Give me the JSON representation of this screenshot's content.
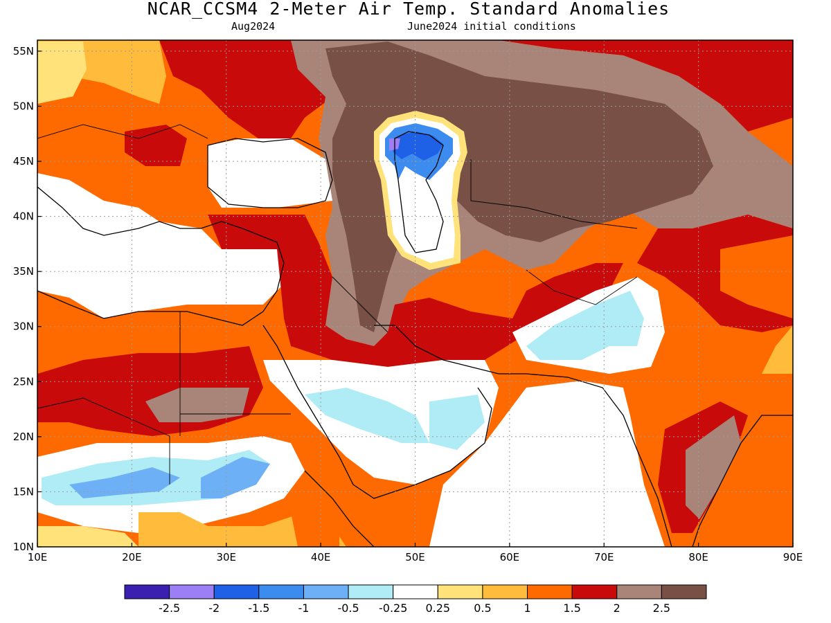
{
  "title": "NCAR_CCSM4 2-Meter Air Temp. Standard Anomalies",
  "subtitle_left": "Aug2024",
  "subtitle_right": "June2024 initial conditions",
  "map": {
    "lon_range": [
      10,
      90
    ],
    "lat_range": [
      10,
      56
    ],
    "x_ticks": [
      {
        "value": 10,
        "label": "10E"
      },
      {
        "value": 20,
        "label": "20E"
      },
      {
        "value": 30,
        "label": "30E"
      },
      {
        "value": 40,
        "label": "40E"
      },
      {
        "value": 50,
        "label": "50E"
      },
      {
        "value": 60,
        "label": "60E"
      },
      {
        "value": 70,
        "label": "70E"
      },
      {
        "value": 80,
        "label": "80E"
      },
      {
        "value": 90,
        "label": "90E"
      }
    ],
    "y_ticks": [
      {
        "value": 10,
        "label": "10N"
      },
      {
        "value": 15,
        "label": "15N"
      },
      {
        "value": 20,
        "label": "20N"
      },
      {
        "value": 25,
        "label": "25N"
      },
      {
        "value": 30,
        "label": "30N"
      },
      {
        "value": 35,
        "label": "35N"
      },
      {
        "value": 40,
        "label": "40N"
      },
      {
        "value": 45,
        "label": "45N"
      },
      {
        "value": 50,
        "label": "50N"
      },
      {
        "value": 55,
        "label": "55N"
      }
    ],
    "grid": true
  },
  "colorbar": {
    "colors": [
      "#3a1fb0",
      "#9c7ef5",
      "#1e60e6",
      "#3c8cf0",
      "#6eb0f5",
      "#b0ecf5",
      "#ffffff",
      "#ffe37a",
      "#ffbb3c",
      "#ff6a00",
      "#c80a0a",
      "#a98478",
      "#785046"
    ],
    "labels": [
      "-2.5",
      "-2",
      "-1.5",
      "-1",
      "-0.5",
      "-0.25",
      "0.25",
      "0.5",
      "1",
      "1.5",
      "2",
      "2.5"
    ]
  },
  "chart_data": {
    "type": "heatmap",
    "title": "NCAR_CCSM4 2-Meter Air Temp. Standard Anomalies",
    "subtitle": "Aug2024 / June2024 initial conditions",
    "x_axis": "longitude (10E–90E)",
    "y_axis": "latitude (10N–56N)",
    "levels": [
      -2.5,
      -2,
      -1.5,
      -1,
      -0.5,
      -0.25,
      0.25,
      0.5,
      1,
      1.5,
      2,
      2.5
    ],
    "regions": [
      {
        "lon": [
          40,
          72
        ],
        "lat": [
          40,
          56
        ],
        "anomaly": 2.5
      },
      {
        "lon": [
          72,
          88
        ],
        "lat": [
          42,
          52
        ],
        "anomaly": 2.5
      },
      {
        "lon": [
          44,
          52
        ],
        "lat": [
          26,
          40
        ],
        "anomaly": 2.5
      },
      {
        "lon": [
          22,
          36
        ],
        "lat": [
          20,
          25
        ],
        "anomaly": 2.5
      },
      {
        "lon": [
          78,
          82
        ],
        "lat": [
          10,
          21
        ],
        "anomaly": 2.5
      },
      {
        "lon": [
          46,
          54
        ],
        "lat": [
          44,
          48
        ],
        "anomaly": -1.5
      },
      {
        "lon": [
          20,
          48
        ],
        "lat": [
          13,
          18
        ],
        "anomaly": -1
      },
      {
        "lon": [
          62,
          76
        ],
        "lat": [
          27,
          33
        ],
        "anomaly": -0.5
      },
      {
        "lon": [
          42,
          58
        ],
        "lat": [
          19,
          23
        ],
        "anomaly": -0.5
      },
      {
        "lon": [
          10,
          35
        ],
        "lat": [
          23,
          33
        ],
        "anomaly": 1.5
      },
      {
        "lon": [
          70,
          90
        ],
        "lat": [
          15,
          30
        ],
        "anomaly": 1.5
      },
      {
        "lon": [
          10,
          20
        ],
        "lat": [
          48,
          56
        ],
        "anomaly": 1
      }
    ]
  }
}
